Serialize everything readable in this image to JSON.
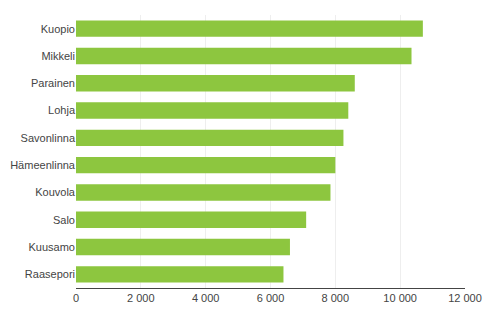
{
  "chart_data": {
    "type": "bar",
    "orientation": "horizontal",
    "categories": [
      "Kuopio",
      "Mikkeli",
      "Parainen",
      "Lohja",
      "Savonlinna",
      "Hämeenlinna",
      "Kouvola",
      "Salo",
      "Kuusamo",
      "Raasepori"
    ],
    "values": [
      10700,
      10350,
      8600,
      8400,
      8250,
      8000,
      7850,
      7100,
      6600,
      6400
    ],
    "color": "#8dc63f",
    "xlim": [
      0,
      12000
    ],
    "xticks": [
      0,
      {
        "value": 2000,
        "label": "2 000"
      },
      {
        "value": 4000,
        "label": "4 000"
      },
      {
        "value": 6000,
        "label": "6 000"
      },
      {
        "value": 8000,
        "label": "8 000"
      },
      {
        "value": 10000,
        "label": "10 000"
      },
      {
        "value": 12000,
        "label": "12 000"
      }
    ],
    "grid": true
  }
}
